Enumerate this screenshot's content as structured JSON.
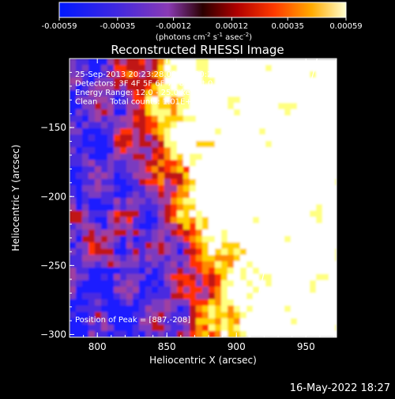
{
  "colorbar": {
    "tick_labels": [
      "-0.00059",
      "-0.00035",
      "-0.00012",
      "0.00012",
      "0.00035",
      "0.00059"
    ],
    "tick_values": [
      -0.00059,
      -0.00035,
      -0.00012,
      0.00012,
      0.00035,
      0.00059
    ],
    "range": [
      -0.00059,
      0.00059
    ],
    "unit_base": "(photons cm",
    "unit_sup1": "-2",
    "unit_mid": " s",
    "unit_sup2": "-1",
    "unit_end": " asec",
    "unit_sup3": "-2",
    "unit_close": ")"
  },
  "chart_data": {
    "type": "heatmap",
    "title": "Reconstructed RHESSI Image",
    "xlabel": "Heliocentric X (arcsec)",
    "ylabel": "Heliocentric Y (arcsec)",
    "xlim": [
      780,
      972
    ],
    "ylim": [
      -302,
      -100
    ],
    "x_ticks": [
      800,
      850,
      900,
      950
    ],
    "y_ticks": [
      -150,
      -200,
      -250,
      -300
    ],
    "x_tick_labels": [
      "800",
      "850",
      "900",
      "950"
    ],
    "y_tick_labels": [
      "−150",
      "−200",
      "−250",
      "−300"
    ],
    "annotations": [
      "25-Sep-2013 20:23:28.000 to 20:29:28.000",
      "Detectors: 3F 4F 5F 6F 7F 8F, Att 0",
      "Energy Range: 12.0 - 25.0 keV",
      "Clean     Total counts: 1.01E+04"
    ],
    "peak_label": "Position of Peak = [887,-208]",
    "peak": [
      887,
      -208
    ],
    "limb": {
      "x": [
        909,
        921,
        933,
        945,
        958
      ],
      "y": [
        -302,
        -250,
        -200,
        -150,
        -100
      ]
    },
    "colormap": [
      "#1a1aff",
      "#4a2ae0",
      "#7a3ac0",
      "#a040a0",
      "#c01818",
      "#ff3000",
      "#ff8a00",
      "#ffd000",
      "#ffff80",
      "#ffffff"
    ]
  },
  "footer": {
    "date": "16-May-2022 18:27"
  }
}
